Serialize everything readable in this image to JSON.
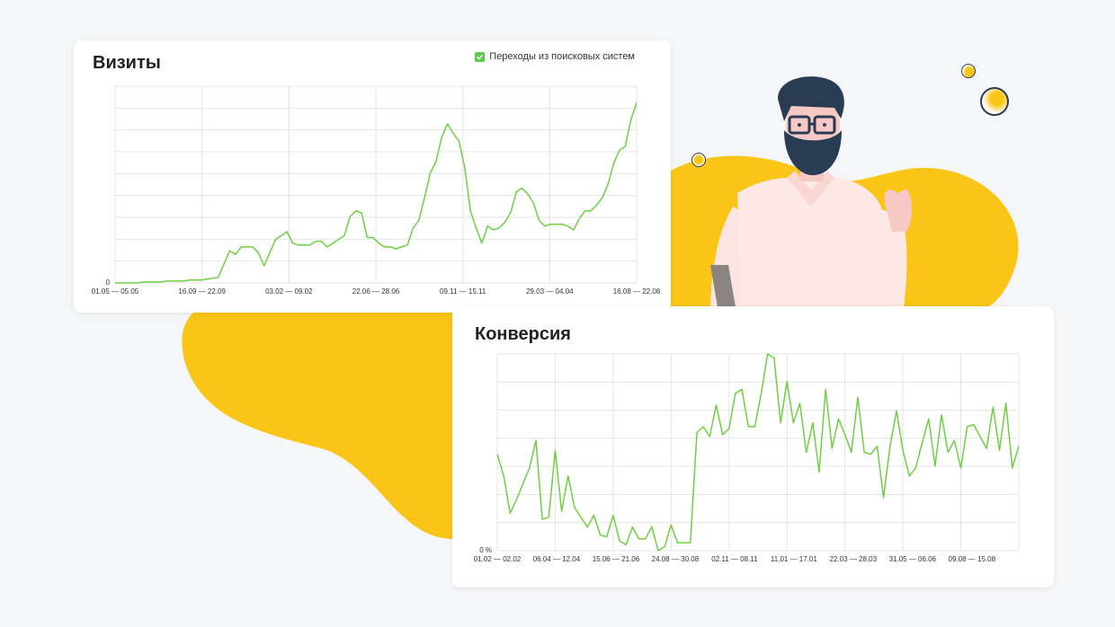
{
  "colors": {
    "background": "#f5f6f8",
    "accent_yellow": "#fac516",
    "line_green": "#6fcf42",
    "grid": "#e4e4e4"
  },
  "chart_data": [
    {
      "type": "line",
      "title": "Визиты",
      "legend": {
        "label": "Переходы из поисковых систем",
        "checked": true,
        "placement": "top-right"
      },
      "grid": true,
      "x_tick_labels": [
        "01.05 — 05.05",
        "16.09 — 22.09",
        "03.02 — 09.02",
        "22.06 — 28.06",
        "09.11 — 15.11",
        "29.03 — 04.04",
        "16.08 — 22.08"
      ],
      "y_tick_labels": [
        "0"
      ],
      "ylim": [
        0,
        100
      ],
      "series": [
        {
          "values": [
            0,
            0,
            0,
            0,
            0,
            0.5,
            0.5,
            0.5,
            0.5,
            1,
            1,
            1,
            1,
            1.5,
            1.5,
            1.5,
            2,
            2.5,
            3,
            10,
            17,
            15,
            19,
            19,
            19,
            16,
            9,
            16,
            23,
            25,
            27,
            21,
            20,
            20,
            20,
            22,
            22,
            19,
            21,
            23,
            25,
            35,
            38,
            37,
            24,
            24,
            21,
            19,
            19,
            18,
            19,
            20,
            29,
            33,
            45,
            58,
            64,
            77,
            84,
            79,
            75,
            61,
            38,
            29,
            21,
            30,
            28,
            29,
            32,
            37,
            48,
            50,
            47,
            42,
            33,
            30,
            31,
            31,
            31,
            30,
            28,
            34,
            38,
            38,
            41,
            45,
            52,
            63,
            70,
            72,
            86,
            95
          ]
        }
      ]
    },
    {
      "type": "line",
      "title": "Конверсия",
      "grid": true,
      "x_tick_labels": [
        "01.02 — 02.02",
        "06.04 — 12.04",
        "15.06 — 21.06",
        "24.08 — 30.08",
        "02.11 — 08.11",
        "11.01 — 17.01",
        "22.03 — 28.03",
        "31.05 — 06.06",
        "09.08 — 15.08"
      ],
      "y_tick_labels": [
        "0 %"
      ],
      "ylim": [
        0,
        100
      ],
      "series": [
        {
          "values": [
            49,
            38,
            19,
            26,
            34,
            42,
            56,
            16,
            17,
            51,
            20,
            38,
            22,
            17,
            12,
            18,
            8,
            7,
            18,
            5,
            3,
            12,
            6,
            6,
            12,
            0,
            2,
            13,
            4,
            4,
            4,
            60,
            63,
            58,
            74,
            59,
            62,
            80,
            82,
            63,
            63,
            80,
            100,
            98,
            65,
            86,
            65,
            75,
            50,
            65,
            40,
            82,
            52,
            67,
            59,
            50,
            78,
            50,
            49,
            53,
            27,
            53,
            71,
            51,
            38,
            42,
            55,
            67,
            43,
            69,
            50,
            56,
            42,
            63,
            64,
            58,
            52,
            73,
            51,
            75,
            42,
            53
          ]
        }
      ]
    }
  ]
}
